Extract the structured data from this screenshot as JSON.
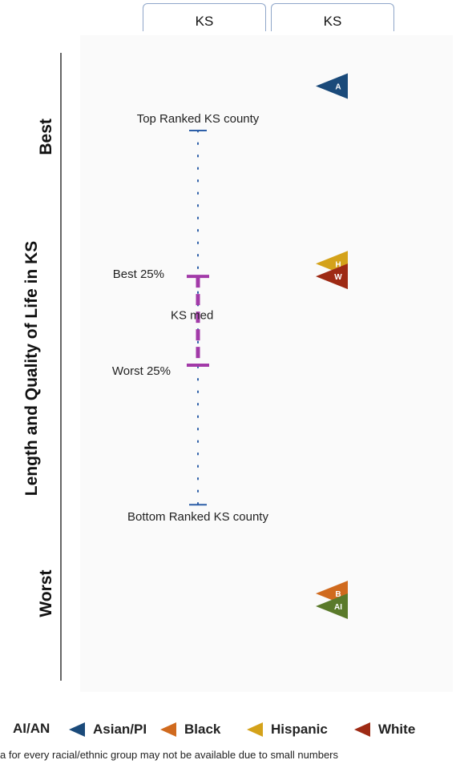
{
  "tabs": [
    {
      "label": "KS"
    },
    {
      "label": "KS"
    }
  ],
  "chart_data": {
    "type": "scatter",
    "ylabel": "Length and Quality of Life in KS",
    "axis_ends": {
      "top": "Best",
      "bottom": "Worst"
    },
    "reference_labels": {
      "top": "Top Ranked KS county",
      "best25": "Best 25%",
      "median": "KS med",
      "worst25": "Worst 25%",
      "bottom": "Bottom Ranked KS county"
    },
    "scale": "rank position, 0 = Best (top), 100 = Worst (bottom)",
    "reference_values": {
      "top": 13,
      "best25": 36,
      "median": 42,
      "worst25": 50,
      "bottom": 72
    },
    "points": [
      {
        "group": "Asian/PI",
        "marker_label": "A",
        "color": "#1a4a7a",
        "value": 6
      },
      {
        "group": "Hispanic",
        "marker_label": "H",
        "color": "#d4a21a",
        "value": 34
      },
      {
        "group": "White",
        "marker_label": "W",
        "color": "#9e2a14",
        "value": 36
      },
      {
        "group": "Black",
        "marker_label": "B",
        "color": "#d06a1e",
        "value": 86
      },
      {
        "group": "AI/AN",
        "marker_label": "AI",
        "color": "#5a7a2a",
        "value": 88
      }
    ],
    "legend": [
      {
        "label": "AI/AN",
        "color": "#5a7a2a"
      },
      {
        "label": "Asian/PI",
        "color": "#1a4a7a"
      },
      {
        "label": "Black",
        "color": "#d06a1e"
      },
      {
        "label": "Hispanic",
        "color": "#d4a21a"
      },
      {
        "label": "White",
        "color": "#9e2a14"
      }
    ],
    "colors": {
      "range": "#2d5fa8",
      "quartile": "#a23aa8",
      "axis": "#666666"
    }
  },
  "footnote": "a for every racial/ethnic group may not be available due to small numbers"
}
